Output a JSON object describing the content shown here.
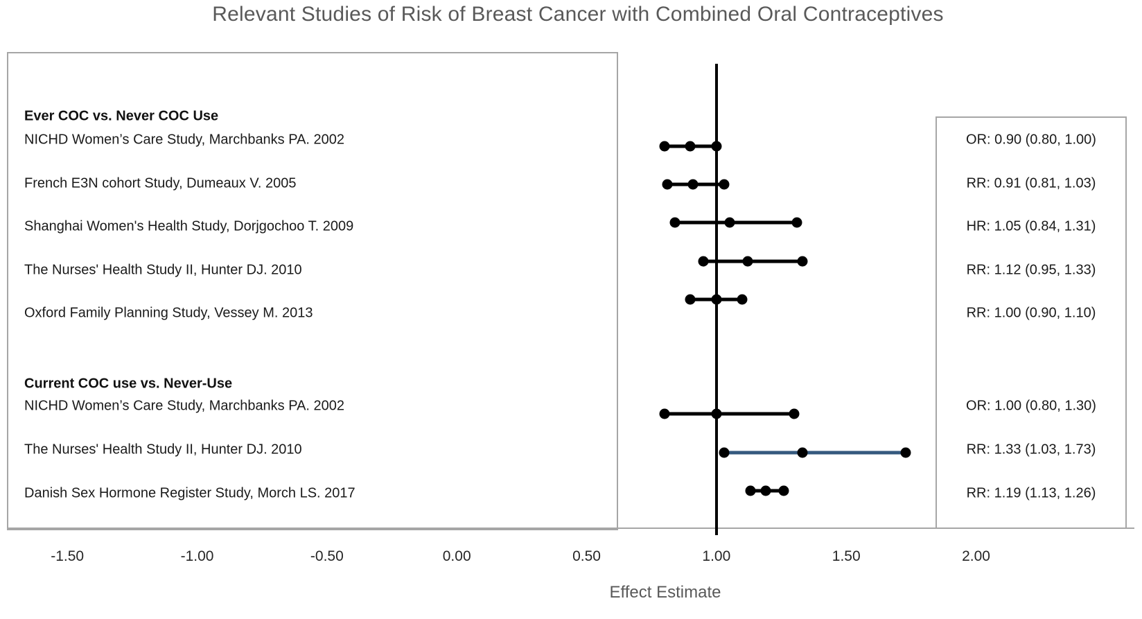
{
  "chart_data": {
    "type": "scatter",
    "subtype": "forest-plot",
    "title": "Relevant Studies of Risk of Breast Cancer with Combined Oral Contraceptives",
    "xlabel": "Effect Estimate",
    "ylabel": "",
    "xlim": [
      -1.75,
      2.6
    ],
    "grid": false,
    "legend": "none",
    "reference_line_x": 1.0,
    "xticks": [
      {
        "value": -1.5,
        "label": "-1.50"
      },
      {
        "value": -1.0,
        "label": "-1.00"
      },
      {
        "value": -0.5,
        "label": "-0.50"
      },
      {
        "value": 0.0,
        "label": "0.00"
      },
      {
        "value": 0.5,
        "label": "0.50"
      },
      {
        "value": 1.0,
        "label": "1.00"
      },
      {
        "value": 1.5,
        "label": "1.50"
      },
      {
        "value": 2.0,
        "label": "2.00"
      }
    ],
    "colors": {
      "marker": "#000000",
      "highlight_line": "#35597e",
      "box_border": "#a6a6a6",
      "title_text": "#595959",
      "label_text": "#1a1a1a"
    },
    "groups": [
      {
        "header": "Ever COC vs. Never COC Use",
        "studies": [
          {
            "label": "NICHD Women’s Care Study, Marchbanks PA. 2002",
            "measure": "OR",
            "estimate": 0.9,
            "ci_low": 0.8,
            "ci_high": 1.0,
            "estimate_text": "OR: 0.90 (0.80, 1.00)",
            "color": "#000000"
          },
          {
            "label": "French E3N cohort Study, Dumeaux V. 2005",
            "measure": "RR",
            "estimate": 0.91,
            "ci_low": 0.81,
            "ci_high": 1.03,
            "estimate_text": "RR: 0.91 (0.81, 1.03)",
            "color": "#000000"
          },
          {
            "label": "Shanghai Women's Health Study, Dorjgochoo T. 2009",
            "measure": "HR",
            "estimate": 1.05,
            "ci_low": 0.84,
            "ci_high": 1.31,
            "estimate_text": "HR: 1.05 (0.84, 1.31)",
            "color": "#000000"
          },
          {
            "label": "The Nurses' Health Study II, Hunter DJ. 2010",
            "measure": "RR",
            "estimate": 1.12,
            "ci_low": 0.95,
            "ci_high": 1.33,
            "estimate_text": "RR: 1.12 (0.95, 1.33)",
            "color": "#000000"
          },
          {
            "label": "Oxford Family Planning Study, Vessey M. 2013",
            "measure": "RR",
            "estimate": 1.0,
            "ci_low": 0.9,
            "ci_high": 1.1,
            "estimate_text": "RR: 1.00 (0.90, 1.10)",
            "color": "#000000"
          }
        ]
      },
      {
        "header": "Current COC use vs. Never-Use",
        "studies": [
          {
            "label": "NICHD Women’s Care Study, Marchbanks PA. 2002",
            "measure": "OR",
            "estimate": 1.0,
            "ci_low": 0.8,
            "ci_high": 1.3,
            "estimate_text": "OR: 1.00 (0.80, 1.30)",
            "color": "#000000"
          },
          {
            "label": "The Nurses' Health Study II, Hunter DJ. 2010",
            "measure": "RR",
            "estimate": 1.33,
            "ci_low": 1.03,
            "ci_high": 1.73,
            "estimate_text": "RR: 1.33 (1.03, 1.73)",
            "color": "#35597e"
          },
          {
            "label": "Danish Sex Hormone Register Study, Morch LS. 2017",
            "measure": "RR",
            "estimate": 1.19,
            "ci_low": 1.13,
            "ci_high": 1.26,
            "estimate_text": "RR: 1.19 (1.13, 1.26)",
            "color": "#000000"
          }
        ]
      }
    ]
  }
}
